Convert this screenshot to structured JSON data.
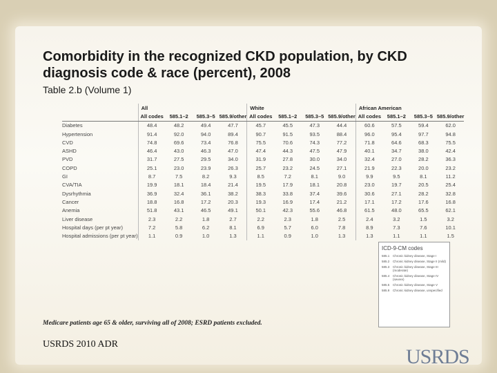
{
  "title": "Comorbidity in the recognized CKD population, by CKD diagnosis code & race (percent), 2008",
  "subtitle": "Table 2.b (Volume 1)",
  "table": {
    "groups": [
      "All",
      "White",
      "African American"
    ],
    "columns": [
      "All codes",
      "585.1–2",
      "585.3–5",
      "585.9/other"
    ],
    "rows": [
      [
        "Diabetes",
        "48.4",
        "48.2",
        "49.4",
        "47.7",
        "45.7",
        "45.5",
        "47.3",
        "44.4",
        "60.6",
        "57.5",
        "59.4",
        "62.0"
      ],
      [
        "Hypertension",
        "91.4",
        "92.0",
        "94.0",
        "89.4",
        "90.7",
        "91.5",
        "93.5",
        "88.4",
        "96.0",
        "95.4",
        "97.7",
        "94.8"
      ],
      [
        "CVD",
        "74.8",
        "69.6",
        "73.4",
        "76.8",
        "75.5",
        "70.6",
        "74.3",
        "77.2",
        "71.8",
        "64.6",
        "68.3",
        "75.5"
      ],
      [
        "ASHD",
        "46.4",
        "43.0",
        "46.3",
        "47.0",
        "47.4",
        "44.3",
        "47.5",
        "47.9",
        "40.1",
        "34.7",
        "38.0",
        "42.4"
      ],
      [
        "PVD",
        "31.7",
        "27.5",
        "29.5",
        "34.0",
        "31.9",
        "27.8",
        "30.0",
        "34.0",
        "32.4",
        "27.0",
        "28.2",
        "36.3"
      ],
      [
        "COPD",
        "25.1",
        "23.0",
        "23.9",
        "26.3",
        "25.7",
        "23.2",
        "24.5",
        "27.1",
        "21.9",
        "22.3",
        "20.0",
        "23.2"
      ],
      [
        "GI",
        "8.7",
        "7.5",
        "8.2",
        "9.3",
        "8.5",
        "7.2",
        "8.1",
        "9.0",
        "9.9",
        "9.5",
        "8.1",
        "11.2"
      ],
      [
        "CVA/TIA",
        "19.9",
        "18.1",
        "18.4",
        "21.4",
        "19.5",
        "17.9",
        "18.1",
        "20.8",
        "23.0",
        "19.7",
        "20.5",
        "25.4"
      ],
      [
        "Dysrhythmia",
        "36.9",
        "32.4",
        "36.1",
        "38.2",
        "38.3",
        "33.8",
        "37.4",
        "39.6",
        "30.6",
        "27.1",
        "28.2",
        "32.8"
      ],
      [
        "Cancer",
        "18.8",
        "16.8",
        "17.2",
        "20.3",
        "19.3",
        "16.9",
        "17.4",
        "21.2",
        "17.1",
        "17.2",
        "17.6",
        "16.8"
      ],
      [
        "Anemia",
        "51.8",
        "43.1",
        "46.5",
        "49.1",
        "50.1",
        "42.3",
        "55.6",
        "46.8",
        "61.5",
        "48.0",
        "65.5",
        "62.1"
      ],
      [
        "Liver disease",
        "2.3",
        "2.2",
        "1.8",
        "2.7",
        "2.2",
        "2.3",
        "1.8",
        "2.5",
        "2.4",
        "3.2",
        "1.5",
        "3.2"
      ],
      [
        "Hospital days (per pt year)",
        "7.2",
        "5.8",
        "6.2",
        "8.1",
        "6.9",
        "5.7",
        "6.0",
        "7.8",
        "8.9",
        "7.3",
        "7.6",
        "10.1"
      ],
      [
        "Hospital admissions (per pt year)",
        "1.1",
        "0.9",
        "1.0",
        "1.3",
        "1.1",
        "0.9",
        "1.0",
        "1.3",
        "1.3",
        "1.1",
        "1.1",
        "1.5"
      ]
    ]
  },
  "legend": {
    "title": "ICD-9-CM codes",
    "items": [
      [
        "585.1",
        "Chronic kidney disease, Stage I"
      ],
      [
        "585.2",
        "Chronic kidney disease, Stage II (mild)"
      ],
      [
        "585.3",
        "Chronic kidney disease, Stage III (moderate)"
      ],
      [
        "585.4",
        "Chronic kidney disease, Stage IV (severe)"
      ],
      [
        "585.5",
        "Chronic kidney disease, Stage V"
      ],
      [
        "585.9",
        "Chronic kidney disease, unspecified"
      ]
    ]
  },
  "footnote": "Medicare patients age 65 & older, surviving all of 2008; ESRD patients excluded.",
  "footer": "USRDS 2010 ADR",
  "logo": "USRDS"
}
